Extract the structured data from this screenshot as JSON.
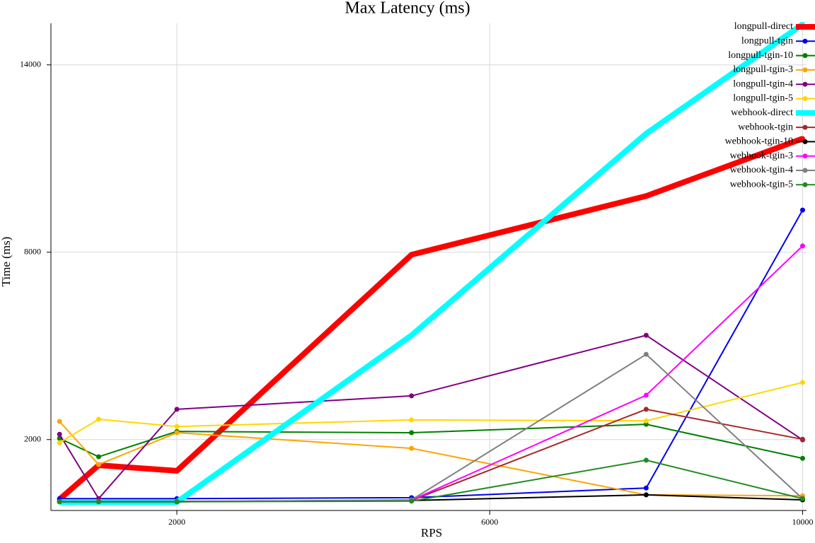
{
  "chart_data": {
    "type": "line",
    "title": "Max Latency (ms)",
    "x_label": "RPS",
    "y_label": "Time (ms)",
    "x": [
      500,
      1000,
      2000,
      5000,
      8000,
      10000
    ],
    "xlim": [
      390,
      10050
    ],
    "xticks": [
      2000,
      6000,
      10000
    ],
    "ylim": [
      -270,
      15330
    ],
    "yticks": [
      2000,
      8000,
      14000
    ],
    "grid": true,
    "legend": "top-right",
    "series": [
      {
        "name": "longpull-direct",
        "color": "#ff0000",
        "width": 8,
        "values": [
          90,
          1180,
          1000,
          7920,
          9800,
          11640
        ]
      },
      {
        "name": "longpull-tgin",
        "color": "#0000ee",
        "width": 2,
        "values": [
          110,
          110,
          110,
          140,
          450,
          9350
        ]
      },
      {
        "name": "longpull-tgin-10",
        "color": "#008000",
        "width": 2,
        "values": [
          2040,
          1450,
          2260,
          2220,
          2490,
          1400
        ]
      },
      {
        "name": "longpull-tgin-3",
        "color": "#ffa500",
        "width": 2,
        "values": [
          2580,
          1200,
          2220,
          1720,
          230,
          200
        ]
      },
      {
        "name": "longpull-tgin-4",
        "color": "#800080",
        "width": 2,
        "values": [
          2170,
          110,
          2970,
          3400,
          5340,
          1990
        ]
      },
      {
        "name": "longpull-tgin-5",
        "color": "#ffd700",
        "width": 2,
        "values": [
          1900,
          2650,
          2420,
          2630,
          2600,
          3830
        ]
      },
      {
        "name": "webhook-direct",
        "color": "#00ffff",
        "width": 8,
        "values": [
          0,
          0,
          0,
          5340,
          11800,
          15300
        ]
      },
      {
        "name": "webhook-tgin",
        "color": "#a52a2a",
        "width": 2,
        "values": [
          20,
          20,
          20,
          50,
          2970,
          2010
        ]
      },
      {
        "name": "webhook-tgin-10",
        "color": "#000000",
        "width": 2,
        "values": [
          10,
          10,
          10,
          50,
          230,
          70
        ]
      },
      {
        "name": "webhook-tgin-3",
        "color": "#ff00ff",
        "width": 2,
        "values": [
          10,
          10,
          10,
          60,
          3420,
          8200
        ]
      },
      {
        "name": "webhook-tgin-4",
        "color": "#808080",
        "width": 2,
        "values": [
          10,
          10,
          10,
          70,
          4730,
          110
        ]
      },
      {
        "name": "webhook-tgin-5",
        "color": "#228b22",
        "width": 2,
        "values": [
          10,
          10,
          10,
          30,
          1340,
          110
        ]
      }
    ]
  }
}
